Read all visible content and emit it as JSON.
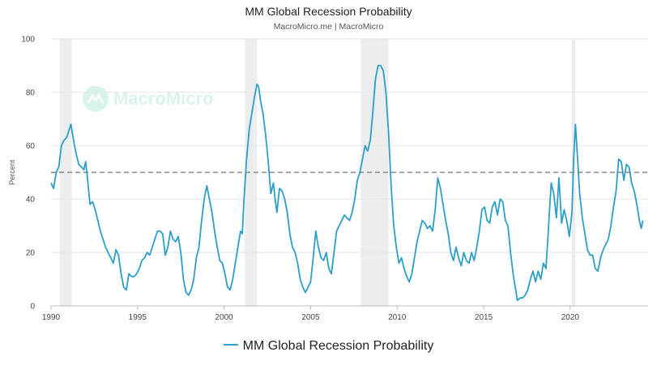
{
  "chart_data": {
    "type": "line",
    "title": "MM Global Recession Probability",
    "subtitle": "MacroMicro.me | MacroMicro",
    "ylabel": "Percent",
    "xlabel": "",
    "ylim": [
      0,
      100
    ],
    "yticks": [
      0,
      20,
      40,
      60,
      80,
      100
    ],
    "xlim": [
      1990,
      2024.5
    ],
    "xticks": [
      1990,
      1995,
      2000,
      2005,
      2010,
      2015,
      2020
    ],
    "grid": true,
    "threshold": 50,
    "recessions": [
      [
        1990.5,
        1991.2
      ],
      [
        2001.2,
        2001.9
      ],
      [
        2007.9,
        2009.5
      ],
      [
        2020.1,
        2020.3
      ]
    ],
    "legend_position": "bottom-center",
    "watermark": "MacroMicro",
    "series": [
      {
        "name": "MM Global Recession Probability",
        "color": "#2b9fc7",
        "points": [
          [
            1990.0,
            46
          ],
          [
            1990.15,
            44
          ],
          [
            1990.3,
            50
          ],
          [
            1990.45,
            52
          ],
          [
            1990.6,
            60
          ],
          [
            1990.75,
            62
          ],
          [
            1990.9,
            63
          ],
          [
            1991.0,
            65
          ],
          [
            1991.15,
            68
          ],
          [
            1991.3,
            62
          ],
          [
            1991.45,
            57
          ],
          [
            1991.6,
            53
          ],
          [
            1991.75,
            52
          ],
          [
            1991.9,
            51
          ],
          [
            1992.0,
            54
          ],
          [
            1992.1,
            48
          ],
          [
            1992.25,
            38
          ],
          [
            1992.4,
            39
          ],
          [
            1992.55,
            36
          ],
          [
            1992.7,
            32
          ],
          [
            1992.85,
            28
          ],
          [
            1993.0,
            25
          ],
          [
            1993.15,
            22
          ],
          [
            1993.3,
            20
          ],
          [
            1993.45,
            18
          ],
          [
            1993.6,
            16
          ],
          [
            1993.75,
            21
          ],
          [
            1993.9,
            19
          ],
          [
            1994.05,
            12
          ],
          [
            1994.2,
            7
          ],
          [
            1994.35,
            6
          ],
          [
            1994.5,
            12
          ],
          [
            1994.65,
            11
          ],
          [
            1994.8,
            11
          ],
          [
            1994.95,
            12
          ],
          [
            1995.1,
            14
          ],
          [
            1995.25,
            17
          ],
          [
            1995.4,
            18
          ],
          [
            1995.55,
            20
          ],
          [
            1995.7,
            19
          ],
          [
            1995.85,
            22
          ],
          [
            1996.0,
            25
          ],
          [
            1996.15,
            28
          ],
          [
            1996.3,
            28
          ],
          [
            1996.45,
            27
          ],
          [
            1996.6,
            19
          ],
          [
            1996.75,
            22
          ],
          [
            1996.9,
            28
          ],
          [
            1997.05,
            25
          ],
          [
            1997.2,
            24
          ],
          [
            1997.35,
            26
          ],
          [
            1997.5,
            20
          ],
          [
            1997.65,
            10
          ],
          [
            1997.8,
            5
          ],
          [
            1997.95,
            4
          ],
          [
            1998.1,
            6
          ],
          [
            1998.25,
            10
          ],
          [
            1998.4,
            18
          ],
          [
            1998.55,
            22
          ],
          [
            1998.7,
            32
          ],
          [
            1998.85,
            40
          ],
          [
            1999.0,
            45
          ],
          [
            1999.15,
            40
          ],
          [
            1999.3,
            35
          ],
          [
            1999.45,
            28
          ],
          [
            1999.6,
            22
          ],
          [
            1999.75,
            17
          ],
          [
            1999.9,
            16
          ],
          [
            2000.05,
            12
          ],
          [
            2000.2,
            7
          ],
          [
            2000.35,
            6
          ],
          [
            2000.5,
            10
          ],
          [
            2000.65,
            16
          ],
          [
            2000.8,
            22
          ],
          [
            2000.95,
            28
          ],
          [
            2001.05,
            27
          ],
          [
            2001.15,
            40
          ],
          [
            2001.3,
            55
          ],
          [
            2001.45,
            66
          ],
          [
            2001.6,
            72
          ],
          [
            2001.75,
            78
          ],
          [
            2001.9,
            83
          ],
          [
            2002.0,
            82
          ],
          [
            2002.1,
            77
          ],
          [
            2002.25,
            72
          ],
          [
            2002.4,
            64
          ],
          [
            2002.55,
            54
          ],
          [
            2002.7,
            42
          ],
          [
            2002.85,
            46
          ],
          [
            2002.95,
            40
          ],
          [
            2003.05,
            35
          ],
          [
            2003.2,
            44
          ],
          [
            2003.35,
            43
          ],
          [
            2003.5,
            40
          ],
          [
            2003.65,
            35
          ],
          [
            2003.8,
            27
          ],
          [
            2003.95,
            22
          ],
          [
            2004.1,
            20
          ],
          [
            2004.25,
            16
          ],
          [
            2004.4,
            10
          ],
          [
            2004.55,
            7
          ],
          [
            2004.7,
            5
          ],
          [
            2004.85,
            7
          ],
          [
            2005.0,
            9
          ],
          [
            2005.15,
            18
          ],
          [
            2005.3,
            28
          ],
          [
            2005.45,
            22
          ],
          [
            2005.6,
            18
          ],
          [
            2005.75,
            17
          ],
          [
            2005.9,
            20
          ],
          [
            2006.05,
            14
          ],
          [
            2006.2,
            12
          ],
          [
            2006.35,
            20
          ],
          [
            2006.5,
            28
          ],
          [
            2006.65,
            30
          ],
          [
            2006.8,
            32
          ],
          [
            2006.95,
            34
          ],
          [
            2007.1,
            33
          ],
          [
            2007.25,
            32
          ],
          [
            2007.4,
            35
          ],
          [
            2007.55,
            40
          ],
          [
            2007.7,
            47
          ],
          [
            2007.85,
            50
          ],
          [
            2008.0,
            55
          ],
          [
            2008.15,
            60
          ],
          [
            2008.3,
            58
          ],
          [
            2008.45,
            62
          ],
          [
            2008.6,
            73
          ],
          [
            2008.75,
            85
          ],
          [
            2008.9,
            90
          ],
          [
            2009.05,
            90
          ],
          [
            2009.2,
            88
          ],
          [
            2009.35,
            80
          ],
          [
            2009.5,
            65
          ],
          [
            2009.65,
            45
          ],
          [
            2009.8,
            30
          ],
          [
            2009.95,
            22
          ],
          [
            2010.1,
            16
          ],
          [
            2010.25,
            18
          ],
          [
            2010.4,
            14
          ],
          [
            2010.55,
            11
          ],
          [
            2010.7,
            9
          ],
          [
            2010.85,
            12
          ],
          [
            2011.0,
            18
          ],
          [
            2011.15,
            24
          ],
          [
            2011.3,
            28
          ],
          [
            2011.45,
            32
          ],
          [
            2011.6,
            31
          ],
          [
            2011.75,
            29
          ],
          [
            2011.9,
            30
          ],
          [
            2012.05,
            28
          ],
          [
            2012.2,
            36
          ],
          [
            2012.35,
            48
          ],
          [
            2012.5,
            44
          ],
          [
            2012.65,
            38
          ],
          [
            2012.8,
            32
          ],
          [
            2012.95,
            27
          ],
          [
            2013.1,
            20
          ],
          [
            2013.25,
            17
          ],
          [
            2013.4,
            22
          ],
          [
            2013.55,
            18
          ],
          [
            2013.7,
            15
          ],
          [
            2013.85,
            20
          ],
          [
            2014.0,
            17
          ],
          [
            2014.15,
            16
          ],
          [
            2014.3,
            20
          ],
          [
            2014.45,
            17
          ],
          [
            2014.6,
            22
          ],
          [
            2014.75,
            28
          ],
          [
            2014.9,
            36
          ],
          [
            2015.05,
            37
          ],
          [
            2015.2,
            32
          ],
          [
            2015.35,
            31
          ],
          [
            2015.5,
            37
          ],
          [
            2015.65,
            39
          ],
          [
            2015.8,
            34
          ],
          [
            2015.95,
            40
          ],
          [
            2016.1,
            39
          ],
          [
            2016.25,
            32
          ],
          [
            2016.4,
            30
          ],
          [
            2016.55,
            20
          ],
          [
            2016.7,
            12
          ],
          [
            2016.85,
            6
          ],
          [
            2016.95,
            2
          ],
          [
            2017.1,
            3
          ],
          [
            2017.25,
            3
          ],
          [
            2017.4,
            4
          ],
          [
            2017.55,
            6
          ],
          [
            2017.7,
            10
          ],
          [
            2017.85,
            13
          ],
          [
            2018.0,
            9
          ],
          [
            2018.15,
            13
          ],
          [
            2018.3,
            10
          ],
          [
            2018.45,
            16
          ],
          [
            2018.6,
            14
          ],
          [
            2018.75,
            30
          ],
          [
            2018.9,
            46
          ],
          [
            2019.05,
            42
          ],
          [
            2019.2,
            33
          ],
          [
            2019.35,
            48
          ],
          [
            2019.5,
            31
          ],
          [
            2019.65,
            36
          ],
          [
            2019.8,
            32
          ],
          [
            2019.95,
            26
          ],
          [
            2020.1,
            35
          ],
          [
            2020.2,
            55
          ],
          [
            2020.3,
            68
          ],
          [
            2020.4,
            58
          ],
          [
            2020.55,
            42
          ],
          [
            2020.7,
            33
          ],
          [
            2020.85,
            27
          ],
          [
            2021.0,
            21
          ],
          [
            2021.15,
            19
          ],
          [
            2021.3,
            19
          ],
          [
            2021.45,
            14
          ],
          [
            2021.6,
            13
          ],
          [
            2021.75,
            18
          ],
          [
            2021.9,
            21
          ],
          [
            2022.05,
            23
          ],
          [
            2022.2,
            25
          ],
          [
            2022.35,
            30
          ],
          [
            2022.5,
            37
          ],
          [
            2022.65,
            43
          ],
          [
            2022.8,
            55
          ],
          [
            2022.95,
            54
          ],
          [
            2023.1,
            47
          ],
          [
            2023.25,
            53
          ],
          [
            2023.4,
            52
          ],
          [
            2023.55,
            46
          ],
          [
            2023.7,
            43
          ],
          [
            2023.85,
            38
          ],
          [
            2024.0,
            32
          ],
          [
            2024.1,
            29
          ],
          [
            2024.2,
            32
          ]
        ]
      }
    ]
  }
}
